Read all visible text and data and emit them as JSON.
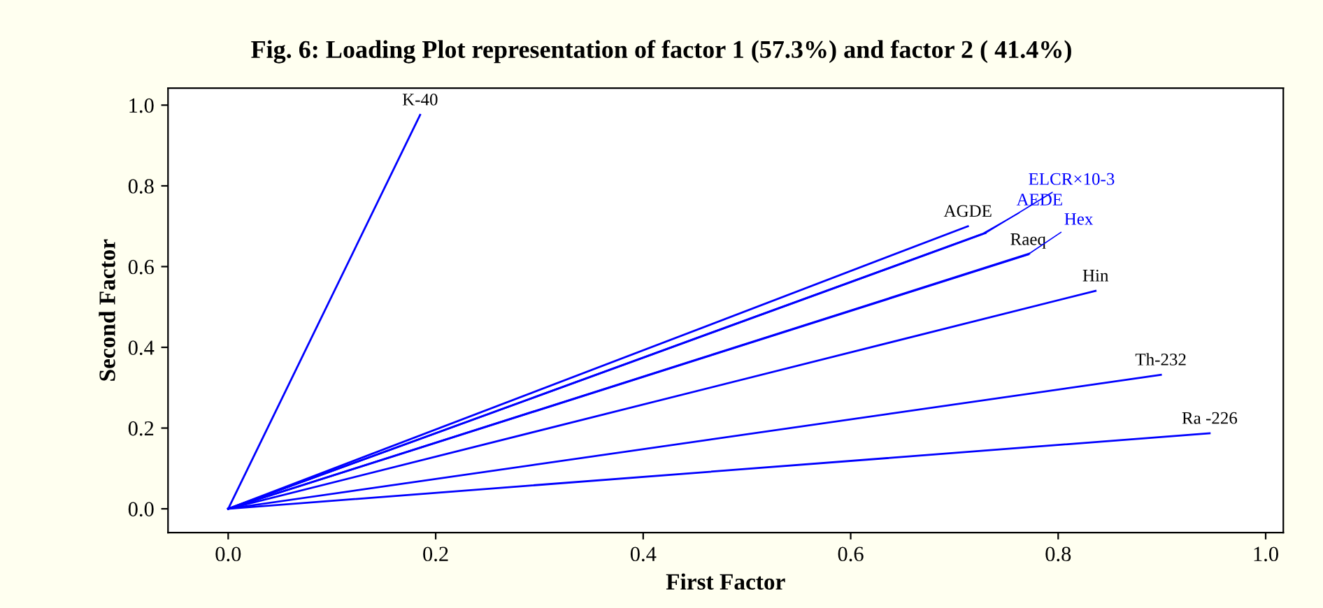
{
  "chart_data": {
    "type": "line",
    "title": "Fig. 6: Loading Plot representation of factor 1 (57.3%) and factor 2 ( 41.4%)",
    "xlabel": "First Factor",
    "ylabel": "Second Factor",
    "series": [
      {
        "name": "K-40",
        "color": "#0000ff",
        "x": [
          0,
          0.185
        ],
        "values": [
          0,
          0.976
        ]
      },
      {
        "name": "AGDE",
        "color": "#0000ff",
        "x": [
          0,
          0.713
        ],
        "values": [
          0,
          0.7
        ]
      },
      {
        "name": "AEDE",
        "color": "#0000ff",
        "x": [
          0,
          0.726
        ],
        "values": [
          0,
          0.68
        ]
      },
      {
        "name": "ELCR×10-3",
        "color": "#0000ff",
        "x": [
          0,
          0.73
        ],
        "values": [
          0,
          0.683
        ]
      },
      {
        "name": "Raeq",
        "color": "#0000ff",
        "x": [
          0,
          0.771
        ],
        "values": [
          0,
          0.63
        ]
      },
      {
        "name": "Hex",
        "color": "#0000ff",
        "x": [
          0,
          0.772
        ],
        "values": [
          0,
          0.632
        ]
      },
      {
        "name": "Hin",
        "color": "#0000ff",
        "x": [
          0,
          0.836
        ],
        "values": [
          0,
          0.54
        ]
      },
      {
        "name": "Th-232",
        "color": "#0000ff",
        "x": [
          0,
          0.899
        ],
        "values": [
          0,
          0.332
        ]
      },
      {
        "name": "Ra -226",
        "color": "#0000ff",
        "x": [
          0,
          0.946
        ],
        "values": [
          0,
          0.187
        ]
      }
    ],
    "xlim": [
      -0.058,
      1.017
    ],
    "ylim": [
      -0.059,
      1.042
    ],
    "xticks": [
      {
        "value": 0,
        "label": "0.0"
      },
      {
        "value": 0.2,
        "label": "0.2"
      },
      {
        "value": 0.4,
        "label": "0.4"
      },
      {
        "value": 0.6,
        "label": "0.6"
      },
      {
        "value": 0.8,
        "label": "0.8"
      },
      {
        "value": 1,
        "label": "1.0"
      }
    ],
    "yticks": [
      {
        "value": 0,
        "label": "0.0"
      },
      {
        "value": 0.2,
        "label": "0.2"
      },
      {
        "value": 0.4,
        "label": "0.4"
      },
      {
        "value": 0.6,
        "label": "0.6"
      },
      {
        "value": 0.8,
        "label": "0.8"
      },
      {
        "value": 1,
        "label": "1.0"
      }
    ],
    "grid": false,
    "legend": false,
    "marker": "none",
    "line_style": "solid"
  }
}
